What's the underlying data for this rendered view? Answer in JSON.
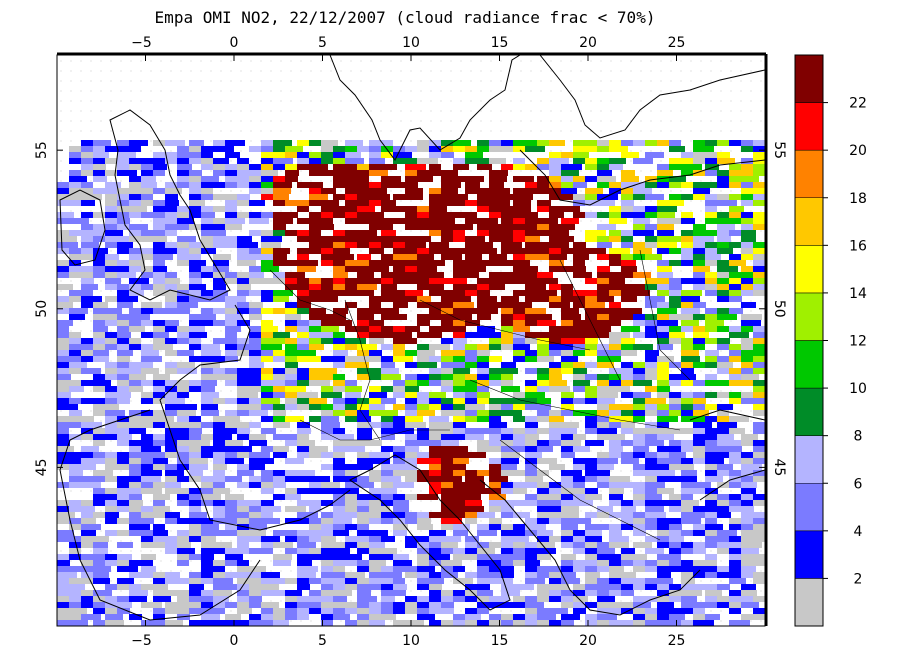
{
  "title": "Empa OMI NO2, 22/12/2007 (cloud radiance frac < 70%)",
  "map": {
    "lon_range": [
      -10,
      30
    ],
    "lat_range": [
      40,
      58
    ],
    "lon_ticks": [
      -5,
      0,
      5,
      10,
      15,
      20,
      25
    ],
    "lat_ticks": [
      45,
      50,
      55
    ],
    "background": "#ffffff",
    "coast_color": "#000000"
  },
  "colorbar": {
    "levels": [
      0,
      2,
      4,
      6,
      8,
      10,
      12,
      14,
      16,
      18,
      20,
      22,
      24
    ],
    "labels": [
      "2",
      "4",
      "6",
      "8",
      "10",
      "12",
      "14",
      "16",
      "18",
      "20",
      "22"
    ],
    "colors": [
      "#c8c8c8",
      "#0000ff",
      "#7b7bff",
      "#b4b4ff",
      "#008c28",
      "#00c800",
      "#a0f000",
      "#ffff00",
      "#ffc800",
      "#ff8200",
      "#ff0000",
      "#800000"
    ]
  }
}
